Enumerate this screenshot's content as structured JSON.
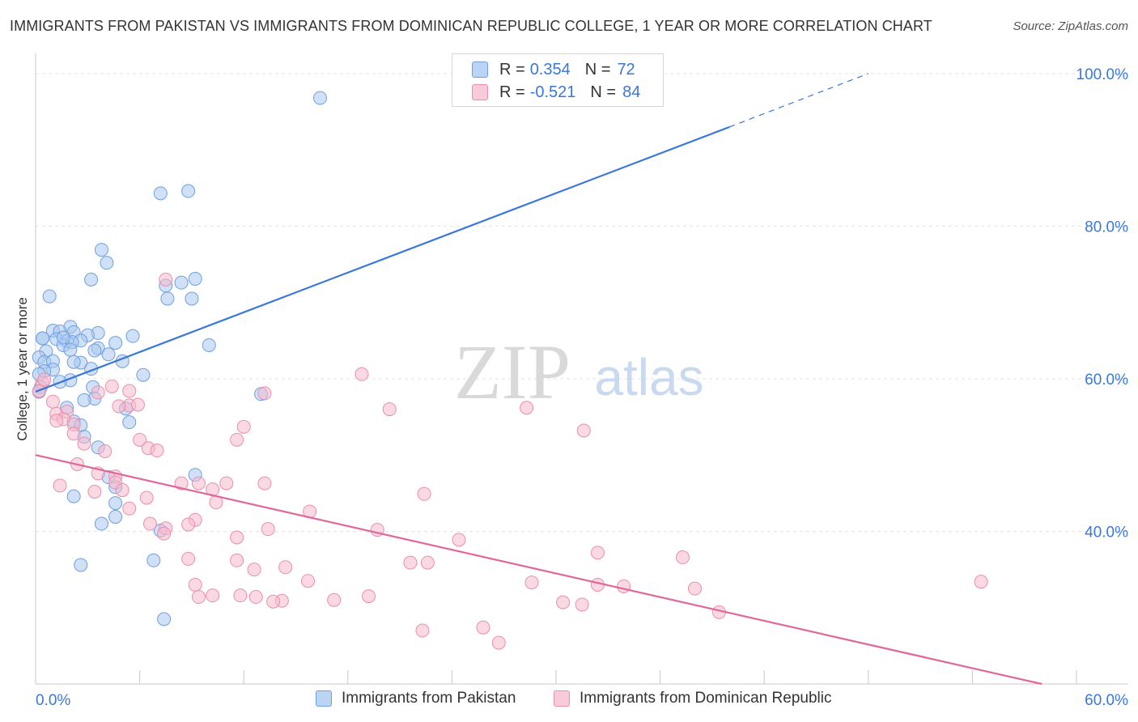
{
  "title": "IMMIGRANTS FROM PAKISTAN VS IMMIGRANTS FROM DOMINICAN REPUBLIC COLLEGE, 1 YEAR OR MORE CORRELATION CHART",
  "source": "Source: ZipAtlas.com",
  "watermark": {
    "zip": "ZIP",
    "atlas": "atlas"
  },
  "legend": {
    "rows": [
      {
        "r_label": "R =",
        "r_value": "0.354",
        "n_label": "N =",
        "n_value": "72"
      },
      {
        "r_label": "R =",
        "r_value": "-0.521",
        "n_label": "N =",
        "n_value": "84"
      }
    ]
  },
  "bottom_legend": [
    "Immigrants from Pakistan",
    "Immigrants from Dominican Republic"
  ],
  "colors": {
    "blue_fill": "#a9c8f0",
    "blue_stroke": "#6f9fde",
    "blue_line": "#3a78d8",
    "blue_text": "#3a78d8",
    "pink_fill": "#f6b9cc",
    "pink_stroke": "#e98fab",
    "pink_line": "#e0679a",
    "grid": "#e4e4e4",
    "axis": "#c8c8c8"
  },
  "chart_data": {
    "type": "scatter",
    "title": "IMMIGRANTS FROM PAKISTAN VS IMMIGRANTS FROM DOMINICAN REPUBLIC COLLEGE, 1 YEAR OR MORE CORRELATION CHART",
    "xlabel": "",
    "ylabel": "College, 1 year or more",
    "xlim": [
      0,
      60
    ],
    "ylim": [
      20,
      102
    ],
    "x_tick_labels": [
      "0.0%",
      "60.0%"
    ],
    "y_ticks": [
      40,
      60,
      80,
      100
    ],
    "y_tick_labels": [
      "40.0%",
      "60.0%",
      "80.0%",
      "100.0%"
    ],
    "grid": true,
    "legend_placement": "top-center",
    "series": [
      {
        "name": "Immigrants from Pakistan",
        "color": "#a9c8f0",
        "r": 0.354,
        "n": 72,
        "trend": {
          "x_start": 0,
          "y_start": 58.3,
          "x_solid_end": 40,
          "y_solid_end": 93.0,
          "x_dash_end": 48,
          "y_dash_end": 100.0
        },
        "points": [
          [
            35.2,
            100.0
          ],
          [
            16.4,
            96.8
          ],
          [
            7.2,
            84.3
          ],
          [
            8.8,
            84.6
          ],
          [
            3.8,
            76.9
          ],
          [
            4.1,
            75.2
          ],
          [
            3.2,
            73.0
          ],
          [
            8.4,
            72.6
          ],
          [
            7.5,
            72.2
          ],
          [
            9.2,
            73.1
          ],
          [
            0.8,
            70.8
          ],
          [
            7.6,
            70.5
          ],
          [
            9.0,
            70.5
          ],
          [
            2.0,
            66.8
          ],
          [
            1.0,
            66.3
          ],
          [
            1.4,
            66.2
          ],
          [
            2.2,
            66.1
          ],
          [
            3.6,
            66.0
          ],
          [
            5.6,
            65.6
          ],
          [
            3.0,
            65.7
          ],
          [
            0.4,
            65.3
          ],
          [
            1.2,
            65.2
          ],
          [
            2.6,
            65.0
          ],
          [
            1.8,
            64.9
          ],
          [
            1.6,
            64.4
          ],
          [
            2.1,
            64.8
          ],
          [
            4.6,
            64.7
          ],
          [
            10.0,
            64.4
          ],
          [
            0.6,
            63.6
          ],
          [
            2.0,
            63.8
          ],
          [
            3.6,
            64.0
          ],
          [
            3.4,
            63.7
          ],
          [
            4.2,
            63.2
          ],
          [
            0.2,
            62.8
          ],
          [
            0.5,
            62.2
          ],
          [
            1.0,
            62.3
          ],
          [
            2.6,
            62.1
          ],
          [
            2.2,
            62.2
          ],
          [
            5.0,
            62.3
          ],
          [
            3.2,
            61.3
          ],
          [
            1.0,
            61.2
          ],
          [
            0.5,
            61.0
          ],
          [
            0.2,
            60.6
          ],
          [
            6.2,
            60.5
          ],
          [
            2.0,
            59.8
          ],
          [
            3.3,
            58.9
          ],
          [
            1.4,
            59.6
          ],
          [
            0.3,
            58.9
          ],
          [
            13.0,
            58.0
          ],
          [
            3.4,
            57.4
          ],
          [
            2.8,
            57.2
          ],
          [
            0.2,
            58.3
          ],
          [
            1.8,
            56.2
          ],
          [
            5.2,
            56.1
          ],
          [
            2.2,
            54.4
          ],
          [
            5.4,
            54.3
          ],
          [
            2.6,
            53.9
          ],
          [
            2.8,
            52.4
          ],
          [
            3.6,
            51.0
          ],
          [
            4.2,
            47.1
          ],
          [
            9.2,
            47.4
          ],
          [
            4.6,
            45.8
          ],
          [
            2.2,
            44.6
          ],
          [
            4.6,
            43.7
          ],
          [
            4.6,
            41.9
          ],
          [
            3.8,
            41.0
          ],
          [
            7.2,
            40.1
          ],
          [
            6.8,
            36.2
          ],
          [
            2.6,
            35.6
          ],
          [
            7.4,
            28.5
          ],
          [
            1.6,
            65.4
          ],
          [
            0.4,
            65.3
          ]
        ]
      },
      {
        "name": "Immigrants from Dominican Republic",
        "color": "#f6b9cc",
        "r": -0.521,
        "n": 84,
        "trend": {
          "x_start": 0,
          "y_start": 50.0,
          "x_end": 58,
          "y_end": 20.0
        },
        "points": [
          [
            7.5,
            73.0
          ],
          [
            0.4,
            59.4
          ],
          [
            0.2,
            58.4
          ],
          [
            0.5,
            59.9
          ],
          [
            4.4,
            59.0
          ],
          [
            5.4,
            58.4
          ],
          [
            3.6,
            58.2
          ],
          [
            13.2,
            58.1
          ],
          [
            1.0,
            57.0
          ],
          [
            5.4,
            56.5
          ],
          [
            1.8,
            55.7
          ],
          [
            4.8,
            56.4
          ],
          [
            5.9,
            56.6
          ],
          [
            18.8,
            60.6
          ],
          [
            1.2,
            55.4
          ],
          [
            1.6,
            54.7
          ],
          [
            1.2,
            54.5
          ],
          [
            2.2,
            54.0
          ],
          [
            12.0,
            53.7
          ],
          [
            20.4,
            56.0
          ],
          [
            28.3,
            56.2
          ],
          [
            31.6,
            53.2
          ],
          [
            2.2,
            52.8
          ],
          [
            2.8,
            51.5
          ],
          [
            6.0,
            52.0
          ],
          [
            11.6,
            52.0
          ],
          [
            6.5,
            50.9
          ],
          [
            4.0,
            50.5
          ],
          [
            7.0,
            50.6
          ],
          [
            2.4,
            48.8
          ],
          [
            3.6,
            47.6
          ],
          [
            4.6,
            47.2
          ],
          [
            1.4,
            46.0
          ],
          [
            4.6,
            46.4
          ],
          [
            8.4,
            46.3
          ],
          [
            9.4,
            46.3
          ],
          [
            11.0,
            46.3
          ],
          [
            13.2,
            46.3
          ],
          [
            10.2,
            45.5
          ],
          [
            5.0,
            45.4
          ],
          [
            3.4,
            45.2
          ],
          [
            6.4,
            44.4
          ],
          [
            10.4,
            43.8
          ],
          [
            22.4,
            44.9
          ],
          [
            5.4,
            43.0
          ],
          [
            15.8,
            42.6
          ],
          [
            9.2,
            41.5
          ],
          [
            6.6,
            41.0
          ],
          [
            8.8,
            40.9
          ],
          [
            7.5,
            40.4
          ],
          [
            13.4,
            40.3
          ],
          [
            19.7,
            40.2
          ],
          [
            24.4,
            38.9
          ],
          [
            7.4,
            39.7
          ],
          [
            11.6,
            39.2
          ],
          [
            32.4,
            37.2
          ],
          [
            37.3,
            36.6
          ],
          [
            11.6,
            36.2
          ],
          [
            8.8,
            36.4
          ],
          [
            21.6,
            35.9
          ],
          [
            22.6,
            35.9
          ],
          [
            14.4,
            35.3
          ],
          [
            15.7,
            33.5
          ],
          [
            12.6,
            35.0
          ],
          [
            28.6,
            33.3
          ],
          [
            32.4,
            33.0
          ],
          [
            33.9,
            32.8
          ],
          [
            38.0,
            32.5
          ],
          [
            9.2,
            33.0
          ],
          [
            11.8,
            31.6
          ],
          [
            9.4,
            31.4
          ],
          [
            10.2,
            31.6
          ],
          [
            12.7,
            31.4
          ],
          [
            14.2,
            30.9
          ],
          [
            17.2,
            31.0
          ],
          [
            19.2,
            31.5
          ],
          [
            13.7,
            30.8
          ],
          [
            30.4,
            30.7
          ],
          [
            31.5,
            30.4
          ],
          [
            39.4,
            29.4
          ],
          [
            54.5,
            33.4
          ],
          [
            25.8,
            27.4
          ],
          [
            22.3,
            27.0
          ],
          [
            26.7,
            25.4
          ]
        ]
      }
    ]
  }
}
